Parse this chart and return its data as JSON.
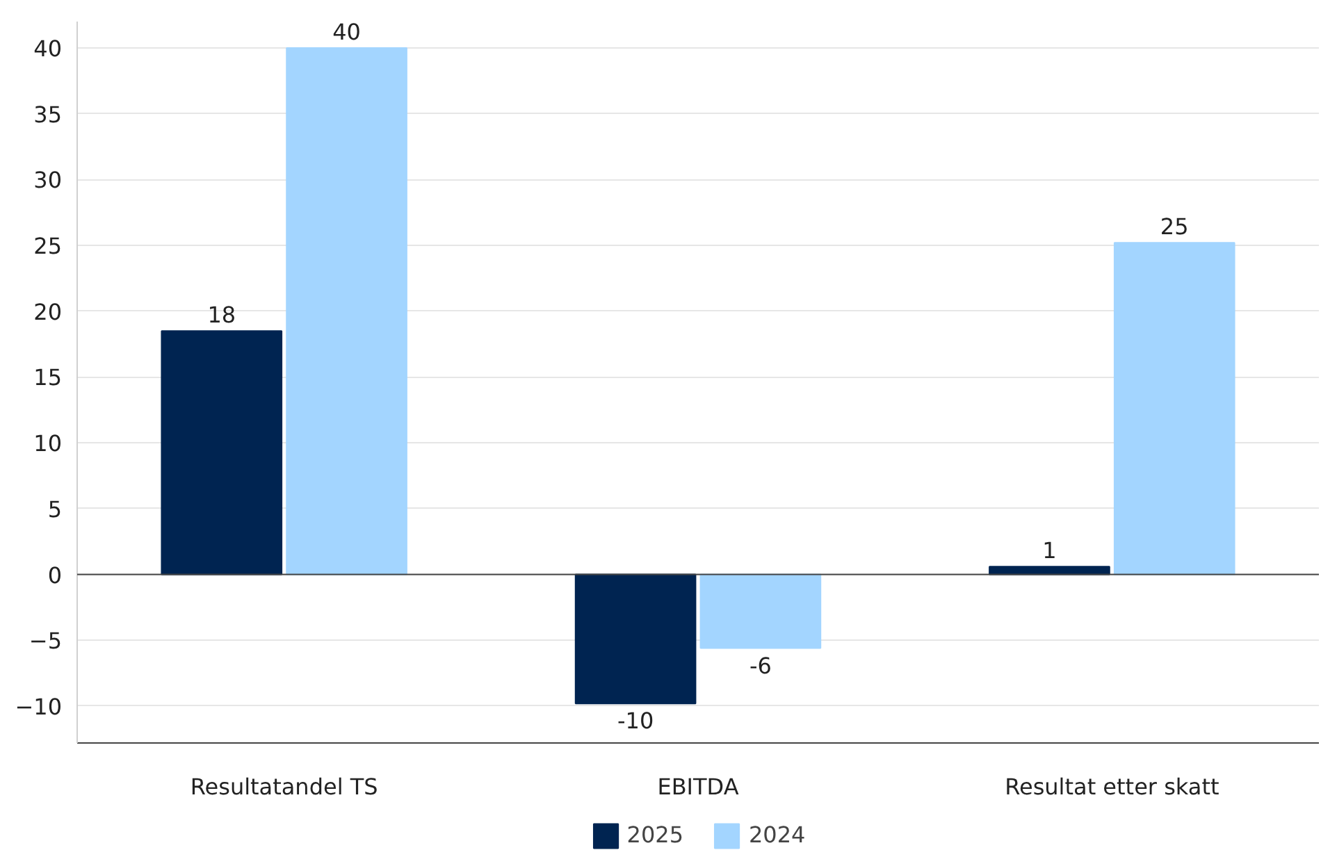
{
  "chart_data": {
    "type": "bar",
    "categories": [
      "Resultatandel TS",
      "EBITDA",
      "Resultat etter skatt"
    ],
    "series": [
      {
        "name": "2025",
        "color": "#002451",
        "values": [
          18.5,
          -9.8,
          0.6
        ],
        "value_labels": [
          "18",
          "-10",
          "1"
        ]
      },
      {
        "name": "2024",
        "color": "#a3d5ff",
        "values": [
          40,
          -5.6,
          25.2
        ],
        "value_labels": [
          "40",
          "-6",
          "25"
        ]
      }
    ],
    "ylim": [
      -12.8,
      42
    ],
    "yticks": [
      -10,
      -5,
      0,
      5,
      10,
      15,
      20,
      25,
      30,
      35,
      40
    ],
    "grid": "y",
    "legend": "bottom"
  }
}
